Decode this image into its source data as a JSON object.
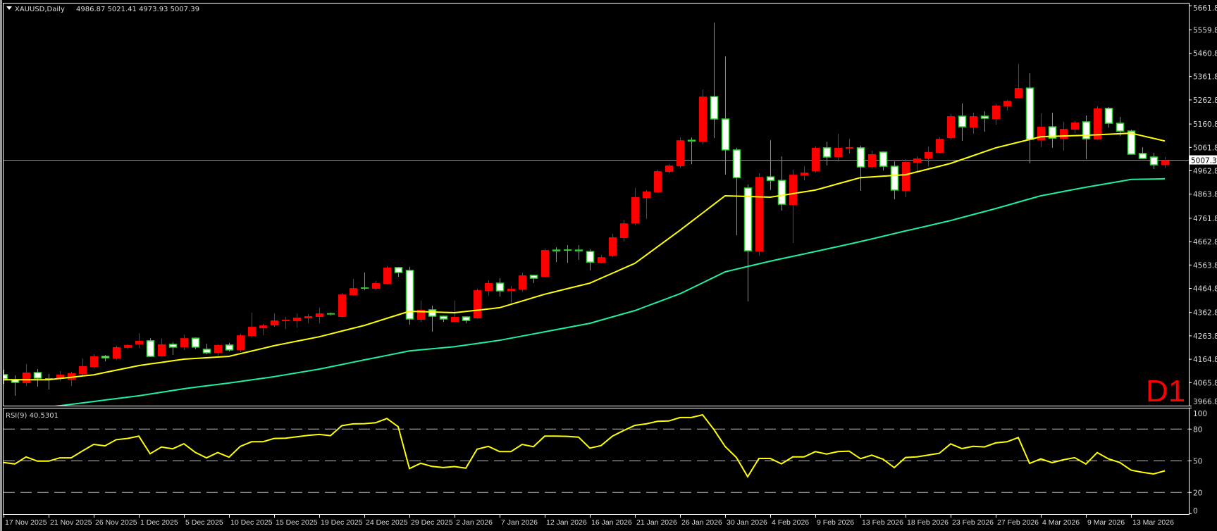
{
  "window": {
    "symbol_menu_icon": "triangle-down-icon",
    "header": "XAUUSD,Daily",
    "header_ohlc": "4986.87 5021.41 4973.93 5007.39",
    "timeframe_badge": "D1"
  },
  "colors": {
    "background": "#000000",
    "bull_candle": "#ff0000",
    "bear_candle_body": "#ffffff",
    "bear_candle_outline": "#32cd32",
    "ma_fast": "#ffff00",
    "ma_slow": "#1ef0a0",
    "rsi_line": "#ffff00",
    "price_line": "#8a8a99",
    "axis": "#ffffff",
    "badge": "#ff0000"
  },
  "chart_data": [
    {
      "type": "candlestick",
      "title": "XAUUSD,Daily",
      "ylim": [
        3966.8,
        5661.8
      ],
      "y_ticks": [
        "5661.80",
        "5559.80",
        "5460.80",
        "5361.80",
        "5262.80",
        "5160.80",
        "5061.80",
        "4962.80",
        "4863.80",
        "4761.80",
        "4662.80",
        "4563.80",
        "4464.80",
        "4362.80",
        "4263.80",
        "4164.80",
        "4065.80",
        "3966.80"
      ],
      "current_price": "5007.39",
      "grid": false,
      "candles_ohlc": [
        [
          4099.5,
          4120.4,
          4060.7,
          4081.6,
          "17 Nov 2025"
        ],
        [
          4078.6,
          4096.5,
          4010,
          4066.7
        ],
        [
          4063.7,
          4144.2,
          4051.8,
          4108.4
        ],
        [
          4108.4,
          4123.3,
          4048.8,
          4084.6
        ],
        [
          4081.6,
          4102.5,
          4036.9,
          4080,
          "21 Nov 2025"
        ],
        [
          4084.6,
          4114.4,
          4072.6,
          4099.5
        ],
        [
          4078.6,
          4111.4,
          4051.8,
          4105.4
        ],
        [
          4102.5,
          4168.1,
          4096.5,
          4135.3
        ],
        [
          4132.3,
          4186,
          4126.3,
          4177,
          "26 Nov 2025"
        ],
        [
          4177,
          4183,
          4156,
          4171
        ],
        [
          4168,
          4222,
          4162,
          4216
        ],
        [
          4213,
          4228,
          4207,
          4225
        ],
        [
          4228,
          4275,
          4213,
          4243,
          "1 Dec 2025"
        ],
        [
          4243,
          4254,
          4174,
          4177
        ],
        [
          4177,
          4252,
          4174,
          4228
        ],
        [
          4228,
          4237,
          4183,
          4216
        ],
        [
          4216,
          4269,
          4204,
          4254,
          "5 Dec 2025"
        ],
        [
          4254,
          4257,
          4207,
          4216
        ],
        [
          4207,
          4231,
          4186,
          4192
        ],
        [
          4192,
          4228,
          4180,
          4225
        ],
        [
          4225,
          4234,
          4198,
          4204,
          "10 Dec 2025"
        ],
        [
          4204,
          4272,
          4195,
          4266
        ],
        [
          4263,
          4362,
          4257,
          4302
        ],
        [
          4296,
          4314,
          4266,
          4308
        ],
        [
          4308,
          4359,
          4302,
          4329,
          "15 Dec 2025"
        ],
        [
          4329,
          4344,
          4293,
          4330
        ],
        [
          4326,
          4359,
          4299,
          4341
        ],
        [
          4338,
          4356,
          4317,
          4347
        ],
        [
          4344,
          4383,
          4317,
          4359,
          "19 Dec 2025"
        ],
        [
          4357,
          4362,
          4350,
          4356
        ],
        [
          4344,
          4445,
          4341,
          4439
        ],
        [
          4436,
          4505,
          4433,
          4466
        ],
        [
          4466,
          4532,
          4457,
          4465,
          "24 Dec 2025"
        ],
        [
          4463,
          4496,
          4457,
          4487
        ],
        [
          4484,
          4559,
          4481,
          4553
        ],
        [
          4553,
          4556,
          4514,
          4532
        ],
        [
          4541,
          4556,
          4311,
          4335,
          "29 Dec 2025"
        ],
        [
          4332,
          4413,
          4323,
          4374
        ],
        [
          4374,
          4392,
          4281,
          4347
        ],
        [
          4347,
          4350,
          4323,
          4335
        ],
        [
          4323,
          4413,
          4320,
          4344,
          "2 Jan 2026"
        ],
        [
          4344,
          4347,
          4317,
          4329
        ],
        [
          4338,
          4463,
          4335,
          4457
        ],
        [
          4454,
          4499,
          4433,
          4487
        ],
        [
          4487,
          4508,
          4430,
          4454,
          "7 Jan 2026"
        ],
        [
          4454,
          4475,
          4403,
          4463
        ],
        [
          4460,
          4532,
          4451,
          4520
        ],
        [
          4520,
          4523,
          4487,
          4508
        ],
        [
          4514,
          4633,
          4511,
          4627,
          "12 Jan 2026"
        ],
        [
          4627,
          4639,
          4576,
          4624
        ],
        [
          4627,
          4648,
          4573,
          4626
        ],
        [
          4627,
          4648,
          4586,
          4624
        ],
        [
          4621,
          4630,
          4541,
          4576,
          "16 Jan 2026"
        ],
        [
          4573,
          4606,
          4570,
          4597
        ],
        [
          4603,
          4696,
          4597,
          4681
        ],
        [
          4678,
          4755,
          4663,
          4740
        ],
        [
          4740,
          4890,
          4731,
          4851,
          "21 Jan 2026"
        ],
        [
          4848,
          4881,
          4759,
          4875
        ],
        [
          4872,
          4967,
          4869,
          4961
        ],
        [
          4958,
          4991,
          4952,
          4985
        ],
        [
          4982,
          5104,
          4976,
          5092,
          "26 Jan 2026"
        ],
        [
          5092,
          5104,
          4991,
          5089
        ],
        [
          5086,
          5307,
          5075,
          5277
        ],
        [
          5277,
          5590,
          5101,
          5182
        ],
        [
          5182,
          5447,
          4946,
          5051,
          "30 Jan 2026"
        ],
        [
          5051,
          5060,
          4690,
          4934
        ],
        [
          4890,
          4905,
          4410,
          4624
        ],
        [
          4621,
          4952,
          4603,
          4937
        ],
        [
          4937,
          5092,
          4881,
          4922,
          "4 Feb 2026"
        ],
        [
          4922,
          5024,
          4794,
          4821
        ],
        [
          4818,
          4967,
          4657,
          4946
        ],
        [
          4943,
          4982,
          4922,
          4955
        ],
        [
          4961,
          5066,
          4955,
          5060,
          "9 Feb 2026"
        ],
        [
          5060,
          5086,
          4985,
          5021
        ],
        [
          5021,
          5119,
          5003,
          5060
        ],
        [
          5060,
          5098,
          5036,
          5061
        ],
        [
          5060,
          5069,
          4878,
          4979,
          "13 Feb 2026"
        ],
        [
          4979,
          5048,
          4973,
          5033
        ],
        [
          5042,
          5045,
          4964,
          4982
        ],
        [
          4982,
          5003,
          4842,
          4881
        ],
        [
          4878,
          5012,
          4851,
          5000,
          "18 Feb 2026"
        ],
        [
          4997,
          5024,
          4958,
          5015
        ],
        [
          5015,
          5066,
          4982,
          5042
        ],
        [
          5039,
          5104,
          5036,
          5098
        ],
        [
          5101,
          5203,
          5095,
          5194,
          "23 Feb 2026"
        ],
        [
          5194,
          5248,
          5089,
          5149
        ],
        [
          5146,
          5209,
          5119,
          5194
        ],
        [
          5194,
          5215,
          5128,
          5185
        ],
        [
          5182,
          5245,
          5158,
          5239,
          "27 Feb 2026"
        ],
        [
          5236,
          5263,
          5218,
          5259
        ],
        [
          5271,
          5415,
          5268,
          5313
        ],
        [
          5313,
          5376,
          4994,
          5096
        ],
        [
          5092,
          5206,
          5063,
          5149,
          "4 Mar 2026"
        ],
        [
          5149,
          5209,
          5060,
          5101
        ],
        [
          5098,
          5170,
          5048,
          5140
        ],
        [
          5137,
          5173,
          5122,
          5167
        ],
        [
          5170,
          5197,
          5012,
          5098,
          "9 Mar 2026"
        ],
        [
          5095,
          5236,
          5092,
          5227
        ],
        [
          5227,
          5233,
          5146,
          5164
        ],
        [
          5164,
          5191,
          5110,
          5131
        ],
        [
          5131,
          5137,
          5039,
          5033,
          "13 Mar 2026"
        ],
        [
          5036,
          5063,
          5012,
          5015
        ],
        [
          5021,
          5039,
          4970,
          4988
        ],
        [
          4986.87,
          5021.41,
          4973.93,
          5007.39
        ]
      ],
      "moving_averages": [
        {
          "color_key": "ma_fast",
          "values_at_date_labels": [
            4078,
            4078,
            4099,
            4138,
            4165,
            4177,
            4222,
            4260,
            4308,
            4368,
            4362,
            4383,
            4440,
            4487,
            4571,
            4711,
            4857,
            4851,
            4881,
            4934,
            4946,
            4994,
            5060,
            5107,
            5113,
            5122
          ],
          "latest": 5089
        },
        {
          "color_key": "ma_slow",
          "values_at_date_labels": [
            null,
            3962,
            3986,
            4010,
            4040,
            4064,
            4091,
            4123,
            4162,
            4200,
            4218,
            4245,
            4281,
            4317,
            4371,
            4442,
            4535,
            4580,
            4621,
            4663,
            4708,
            4752,
            4803,
            4857,
            4893,
            4926
          ],
          "latest": 4929
        }
      ]
    },
    {
      "type": "line",
      "title": "RSI(9) 40.5301",
      "ylim": [
        0,
        100
      ],
      "y_ticks": [
        "100",
        "80",
        "50",
        "20",
        "0"
      ],
      "levels": [
        80,
        50,
        20
      ],
      "values": [
        48.4,
        47,
        53.7,
        49.7,
        49.7,
        52.8,
        52.8,
        59.3,
        65.5,
        64.1,
        70,
        71.1,
        73.3,
        56.7,
        63,
        61.3,
        66.1,
        58,
        52.8,
        57.8,
        53.4,
        63.7,
        68,
        68,
        71.1,
        71.3,
        72.7,
        74,
        74.9,
        73.8,
        83.2,
        84.9,
        85.1,
        86,
        90,
        82.3,
        42.7,
        47.7,
        44.7,
        43.6,
        44.5,
        43,
        60.9,
        63.7,
        58.7,
        58.7,
        65.5,
        63.3,
        73.3,
        73.3,
        73.1,
        72.4,
        62,
        64.4,
        73.3,
        78.7,
        83.5,
        84.9,
        87.3,
        87.7,
        90.9,
        90.9,
        93.5,
        79.7,
        63.5,
        53.1,
        34.9,
        52.2,
        52.2,
        47.1,
        53.7,
        53.7,
        58.7,
        56.4,
        58.7,
        59.1,
        52,
        55.3,
        51.5,
        43.5,
        53.1,
        53.7,
        55.3,
        57.1,
        66,
        61.5,
        63.7,
        63.1,
        66.9,
        68,
        72,
        47.5,
        51.8,
        48.2,
        50.9,
        52.9,
        46.9,
        57.8,
        51.8,
        48.4,
        41.1,
        39.1,
        37.5,
        40.5301
      ]
    }
  ]
}
